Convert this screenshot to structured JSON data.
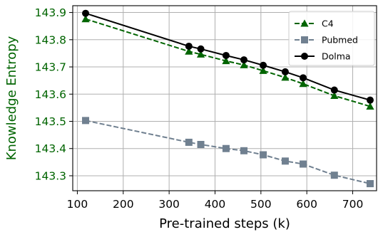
{
  "chart_data": {
    "type": "line",
    "title": "",
    "xlabel": "Pre-trained steps (k)",
    "ylabel": "Knowledge Entropy",
    "xlim": [
      90,
      752
    ],
    "ylim": [
      143.245,
      143.925
    ],
    "xticks": [
      100,
      200,
      300,
      400,
      500,
      600,
      700
    ],
    "yticks": [
      143.3,
      143.4,
      143.5,
      143.6,
      143.7,
      143.8,
      143.9
    ],
    "grid": true,
    "legend_position": "top-right",
    "colors": {
      "ylabel": "#006400",
      "ytick": "#006400",
      "axis": "#000000",
      "grid": "#b0b0b0"
    },
    "series": [
      {
        "name": "C4",
        "color": "#006400",
        "linestyle": "dashed",
        "marker": "triangle",
        "x": [
          118,
          343,
          369,
          424,
          463,
          505,
          553,
          592,
          660,
          738
        ],
        "y": [
          143.876,
          143.757,
          143.746,
          143.722,
          143.707,
          143.686,
          143.661,
          143.638,
          143.594,
          143.555
        ]
      },
      {
        "name": "Pubmed",
        "color": "#708090",
        "linestyle": "dashed",
        "marker": "square",
        "x": [
          118,
          343,
          369,
          424,
          463,
          505,
          553,
          592,
          660,
          738
        ],
        "y": [
          143.503,
          143.423,
          143.415,
          143.4,
          143.392,
          143.377,
          143.354,
          143.343,
          143.302,
          143.271
        ]
      },
      {
        "name": "Dolma",
        "color": "#000000",
        "linestyle": "solid",
        "marker": "circle",
        "x": [
          118,
          343,
          369,
          424,
          463,
          505,
          553,
          592,
          660,
          738
        ],
        "y": [
          143.897,
          143.776,
          143.766,
          143.742,
          143.726,
          143.706,
          143.682,
          143.66,
          143.615,
          143.578
        ]
      }
    ]
  }
}
